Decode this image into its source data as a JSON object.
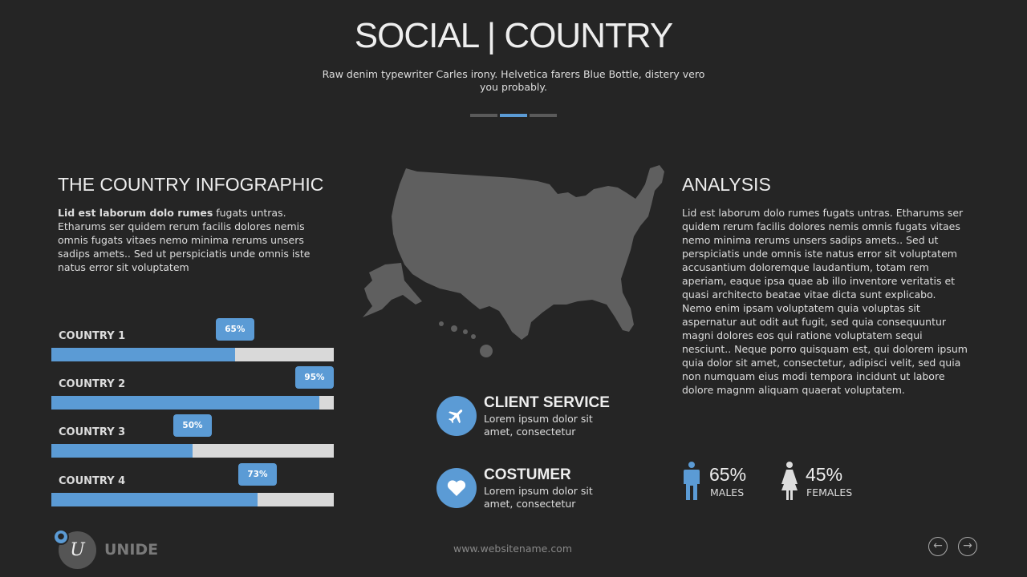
{
  "header": {
    "title": "SOCIAL | COUNTRY",
    "subtitle": "Raw denim typewriter Carles irony. Helvetica farers Blue Bottle, distery vero you probably.",
    "active_dot": 1,
    "dot_count": 3
  },
  "left": {
    "heading": "THE COUNTRY INFOGRAPHIC",
    "intro_bold": "Lid est laborum dolo rumes",
    "intro_rest": " fugats untras. Etharums ser quidem rerum facilis dolores nemis omnis fugats vitaes nemo minima rerums unsers sadips amets.. Sed ut perspiciatis unde omnis iste natus error sit voluptatem"
  },
  "countries": [
    {
      "label": "COUNTRY 1",
      "percent": 65,
      "badge": "65%"
    },
    {
      "label": "COUNTRY 2",
      "percent": 95,
      "badge": "95%"
    },
    {
      "label": "COUNTRY 3",
      "percent": 50,
      "badge": "50%"
    },
    {
      "label": "COUNTRY 4",
      "percent": 73,
      "badge": "73%"
    }
  ],
  "features": [
    {
      "icon": "airplane-icon",
      "title": "CLIENT SERVICE",
      "desc": "Lorem ipsum dolor sit amet, consectetur"
    },
    {
      "icon": "heart-icon",
      "title": "COSTUMER",
      "desc": "Lorem ipsum dolor sit amet, consectetur"
    }
  ],
  "analysis": {
    "heading": "ANALYSIS",
    "text": "Lid est laborum dolo rumes fugats untras. Etharums ser quidem rerum facilis dolores nemis omnis fugats vitaes nemo minima rerums unsers sadips amets.. Sed ut perspiciatis unde omnis iste natus error sit voluptatem accusantium doloremque laudantium, totam rem aperiam, eaque ipsa quae ab illo inventore veritatis et quasi architecto beatae vitae dicta sunt explicabo. Nemo enim ipsam voluptatem quia voluptas sit aspernatur aut odit aut fugit, sed quia consequuntur magni dolores eos qui ratione voluptatem sequi nesciunt.. Neque porro quisquam est, qui dolorem ipsum quia dolor sit amet, consectetur, adipisci velit, sed quia non numquam eius modi tempora incidunt ut labore dolore magnm aliquam quaerat voluptatem."
  },
  "gender": {
    "males": {
      "value": "65%",
      "label": "MALES"
    },
    "females": {
      "value": "45%",
      "label": "FEMALES"
    }
  },
  "footer": {
    "logo_letter": "U",
    "brand": "UNIDE",
    "website": "www.websitename.com",
    "prev_icon": "arrow-left-icon",
    "next_icon": "arrow-right-icon"
  },
  "colors": {
    "background": "#252525",
    "accent": "#5b9bd5",
    "track": "#d9d9d9",
    "map": "#5f5f5f"
  }
}
